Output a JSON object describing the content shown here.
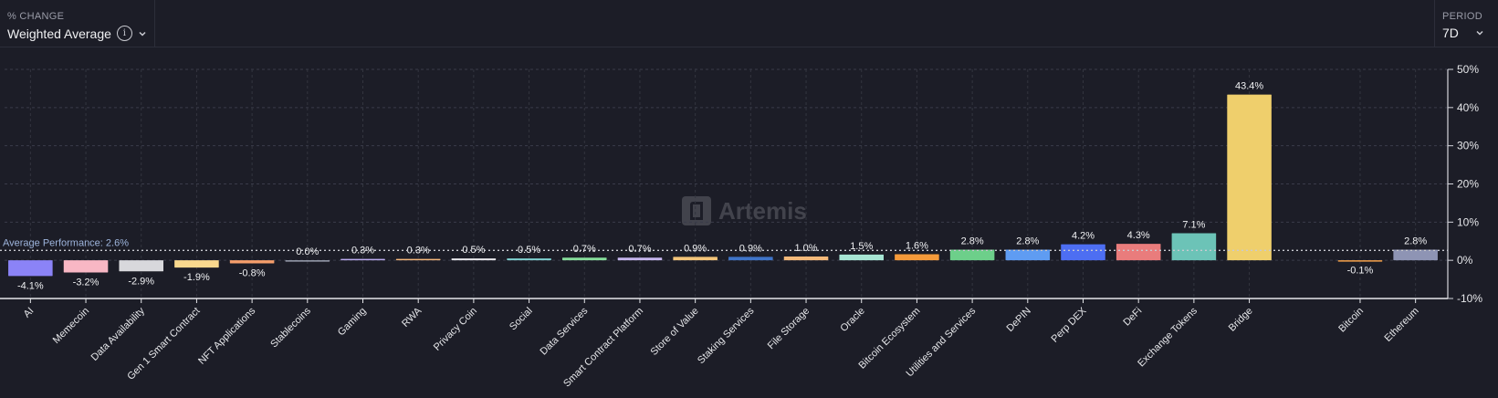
{
  "header": {
    "metric_label": "% CHANGE",
    "metric_value": "Weighted Average",
    "info_glyph": "i",
    "period_label": "PERIOD",
    "period_value": "7D"
  },
  "watermark": {
    "text": "Artemis"
  },
  "chart_data": {
    "type": "bar",
    "ylabel": "",
    "ylim": [
      -10,
      50
    ],
    "yticks": [
      -10,
      0,
      10,
      20,
      30,
      40,
      50
    ],
    "ytick_labels": [
      "-10%",
      "0%",
      "10%",
      "20%",
      "30%",
      "40%",
      "50%"
    ],
    "grid": true,
    "average": {
      "label": "Average Performance: 2.6%",
      "value": 2.6
    },
    "categories": [
      "AI",
      "Memecoin",
      "Data Availability",
      "Gen 1 Smart Contract",
      "NFT Applications",
      "Stablecoins",
      "Gaming",
      "RWA",
      "Privacy Coin",
      "Social",
      "Data Services",
      "Smart Contract Platform",
      "Store of Value",
      "Staking Services",
      "File Storage",
      "Oracle",
      "Bitcoin Ecosystem",
      "Utilities and Services",
      "DePIN",
      "Perp DEX",
      "DeFi",
      "Exchange Tokens",
      "Bridge",
      "",
      "Bitcoin",
      "Ethereum"
    ],
    "values": [
      -4.1,
      -3.2,
      -2.9,
      -1.9,
      -0.8,
      0.0,
      0.3,
      0.3,
      0.5,
      0.5,
      0.7,
      0.7,
      0.9,
      0.9,
      1.0,
      1.5,
      1.6,
      2.8,
      2.8,
      4.2,
      4.3,
      7.1,
      43.4,
      null,
      -0.1,
      2.8
    ],
    "value_labels": [
      "-4.1%",
      "-3.2%",
      "-2.9%",
      "-1.9%",
      "-0.8%",
      "0.0%",
      "0.3%",
      "0.3%",
      "0.5%",
      "0.5%",
      "0.7%",
      "0.7%",
      "0.9%",
      "0.9%",
      "1.0%",
      "1.5%",
      "1.6%",
      "2.8%",
      "2.8%",
      "4.2%",
      "4.3%",
      "7.1%",
      "43.4%",
      "",
      "-0.1%",
      "2.8%"
    ],
    "colors": [
      "#8b83f7",
      "#f8b7c4",
      "#d8d8dc",
      "#f9d88e",
      "#f59e6b",
      "#9aa0b0",
      "#b9a9ee",
      "#f3b67b",
      "#e8e8ec",
      "#7fd0d0",
      "#86dd9b",
      "#c6b6ee",
      "#f4c57a",
      "#3f74c8",
      "#f4b97a",
      "#a7e5d4",
      "#f59a3a",
      "#6dcf8a",
      "#5f9cf2",
      "#4d6ef2",
      "#e97c7c",
      "#6cc3b7",
      "#efcf6c",
      "",
      "#f5a14a",
      "#8e94b4"
    ]
  }
}
